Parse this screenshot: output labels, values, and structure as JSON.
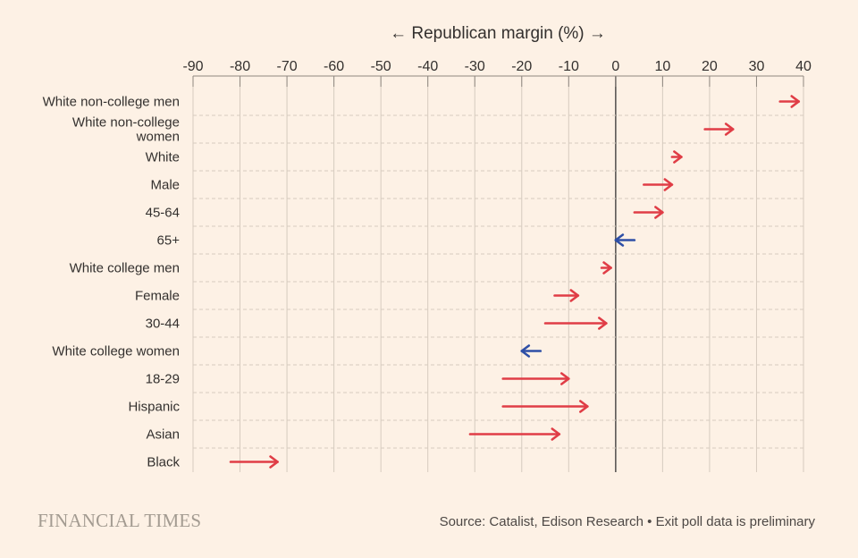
{
  "chart_data": {
    "type": "arrow",
    "title": "← Republican margin (%) →",
    "xlim": [
      -90,
      40
    ],
    "ticks": [
      "-90",
      "-80",
      "-70",
      "-60",
      "-50",
      "-40",
      "-30",
      "-20",
      "-10",
      "0",
      "10",
      "20",
      "30",
      "40"
    ],
    "tick_values": [
      -90,
      -80,
      -70,
      -60,
      -50,
      -40,
      -30,
      -20,
      -10,
      0,
      10,
      20,
      30,
      40
    ],
    "rows": [
      {
        "label": "White non-college men",
        "from": 35,
        "to": 39,
        "color": "#e03d46"
      },
      {
        "label": "White non-college women",
        "from": 19,
        "to": 25,
        "color": "#e03d46"
      },
      {
        "label": "White",
        "from": 12,
        "to": 14,
        "color": "#e03d46"
      },
      {
        "label": "Male",
        "from": 6,
        "to": 12,
        "color": "#e03d46"
      },
      {
        "label": "45-64",
        "from": 4,
        "to": 10,
        "color": "#e03d46"
      },
      {
        "label": "65+",
        "from": 4,
        "to": 0,
        "color": "#2e4fa6"
      },
      {
        "label": "White college men",
        "from": -3,
        "to": -1,
        "color": "#e03d46"
      },
      {
        "label": "Female",
        "from": -13,
        "to": -8,
        "color": "#e03d46"
      },
      {
        "label": "30-44",
        "from": -15,
        "to": -2,
        "color": "#e03d46"
      },
      {
        "label": "White college women",
        "from": -16,
        "to": -20,
        "color": "#2e4fa6"
      },
      {
        "label": "18-29",
        "from": -24,
        "to": -10,
        "color": "#e03d46"
      },
      {
        "label": "Hispanic",
        "from": -24,
        "to": -6,
        "color": "#e03d46"
      },
      {
        "label": "Asian",
        "from": -31,
        "to": -12,
        "color": "#e03d46"
      },
      {
        "label": "Black",
        "from": -82,
        "to": -72,
        "color": "#e03d46"
      }
    ]
  },
  "footer": {
    "logo": "FINANCIAL TIMES",
    "source": "Source: Catalist, Edison Research • Exit poll data is preliminary"
  },
  "colors": {
    "background": "#fdf1e5",
    "republican": "#e03d46",
    "democrat": "#2e4fa6"
  }
}
